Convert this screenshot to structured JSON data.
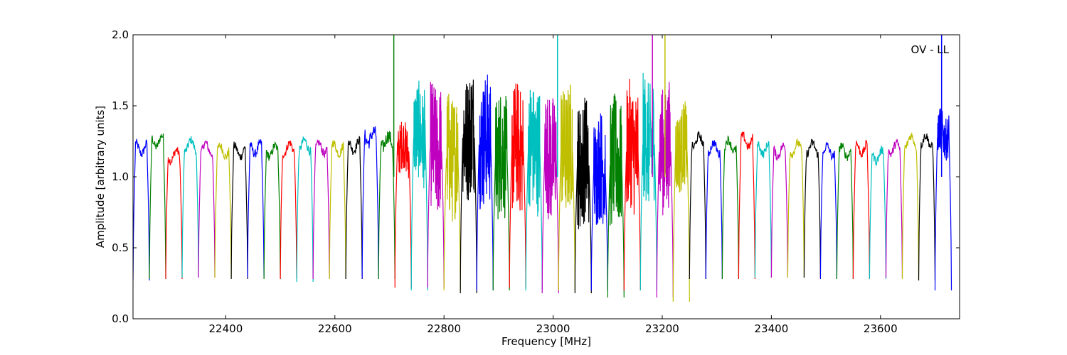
{
  "chart_data": {
    "type": "line",
    "title": "",
    "annotation": "OV - LL",
    "xlabel": "Frequency [MHz]",
    "ylabel": "Amplitude [arbitrary units]",
    "xlim": [
      22230,
      23745
    ],
    "ylim": [
      0.0,
      2.0
    ],
    "xticks": [
      22400,
      22600,
      22800,
      23000,
      23200,
      23400,
      23600
    ],
    "yticks": [
      0.0,
      0.5,
      1.0,
      1.5,
      2.0
    ],
    "xtick_labels": [
      "22400",
      "22600",
      "22800",
      "23000",
      "23200",
      "23400",
      "23600"
    ],
    "ytick_labels": [
      "0.0",
      "0.5",
      "1.0",
      "1.5",
      "2.0"
    ],
    "grid": false,
    "legend": "none",
    "color_cycle": [
      "#0000ff",
      "#008000",
      "#ff0000",
      "#00bfbf",
      "#bf00bf",
      "#bfbf00",
      "#000000"
    ],
    "band_width_mhz": 30,
    "band_start_mhz": [
      22230,
      22260,
      22290,
      22320,
      22350,
      22380,
      22410,
      22440,
      22470,
      22500,
      22530,
      22560,
      22590,
      22620,
      22650,
      22680,
      22710,
      22740,
      22770,
      22800,
      22830,
      22860,
      22890,
      22920,
      22950,
      22980,
      23010,
      23040,
      23070,
      23100,
      23130,
      23160,
      23190,
      23220,
      23250,
      23280,
      23310,
      23340,
      23370,
      23400,
      23430,
      23460,
      23490,
      23520,
      23550,
      23580,
      23610,
      23640,
      23670,
      23700
    ],
    "band_level": [
      1.2,
      1.25,
      1.15,
      1.22,
      1.2,
      1.18,
      1.18,
      1.2,
      1.18,
      1.2,
      1.22,
      1.2,
      1.2,
      1.22,
      1.28,
      1.25,
      1.2,
      1.3,
      1.2,
      1.15,
      1.3,
      1.25,
      1.15,
      1.2,
      1.2,
      1.15,
      1.2,
      1.1,
      1.05,
      1.1,
      1.2,
      1.25,
      1.2,
      1.2,
      1.25,
      1.2,
      1.22,
      1.25,
      1.2,
      1.18,
      1.2,
      1.2,
      1.18,
      1.18,
      1.2,
      1.15,
      1.2,
      1.25,
      1.25,
      1.3
    ],
    "band_noise": [
      0.03,
      0.03,
      0.03,
      0.03,
      0.03,
      0.03,
      0.03,
      0.03,
      0.03,
      0.03,
      0.03,
      0.03,
      0.03,
      0.03,
      0.05,
      0.05,
      0.18,
      0.35,
      0.45,
      0.45,
      0.45,
      0.45,
      0.45,
      0.45,
      0.45,
      0.45,
      0.45,
      0.45,
      0.4,
      0.45,
      0.45,
      0.45,
      0.45,
      0.3,
      0.03,
      0.03,
      0.03,
      0.03,
      0.03,
      0.03,
      0.03,
      0.03,
      0.03,
      0.03,
      0.03,
      0.03,
      0.03,
      0.03,
      0.03,
      0.15
    ],
    "band_floor": [
      0.27,
      0.28,
      0.28,
      0.29,
      0.29,
      0.29,
      0.28,
      0.29,
      0.28,
      0.28,
      0.26,
      0.28,
      0.28,
      0.28,
      0.28,
      0.28,
      0.22,
      0.2,
      0.22,
      0.2,
      0.18,
      0.2,
      0.2,
      0.22,
      0.2,
      0.18,
      0.2,
      0.18,
      0.2,
      0.15,
      0.2,
      0.2,
      0.15,
      0.12,
      0.28,
      0.28,
      0.28,
      0.28,
      0.29,
      0.29,
      0.29,
      0.29,
      0.28,
      0.28,
      0.28,
      0.28,
      0.29,
      0.28,
      0.27,
      0.2
    ],
    "spikes": [
      {
        "x": 22708,
        "y": 2.0,
        "color": "#008000"
      },
      {
        "x": 23008,
        "y": 2.0,
        "color": "#00bfbf"
      },
      {
        "x": 23182,
        "y": 2.0,
        "color": "#bf00bf"
      },
      {
        "x": 23205,
        "y": 2.0,
        "color": "#bfbf00"
      },
      {
        "x": 23712,
        "y": 2.0,
        "color": "#0000ff"
      }
    ]
  }
}
